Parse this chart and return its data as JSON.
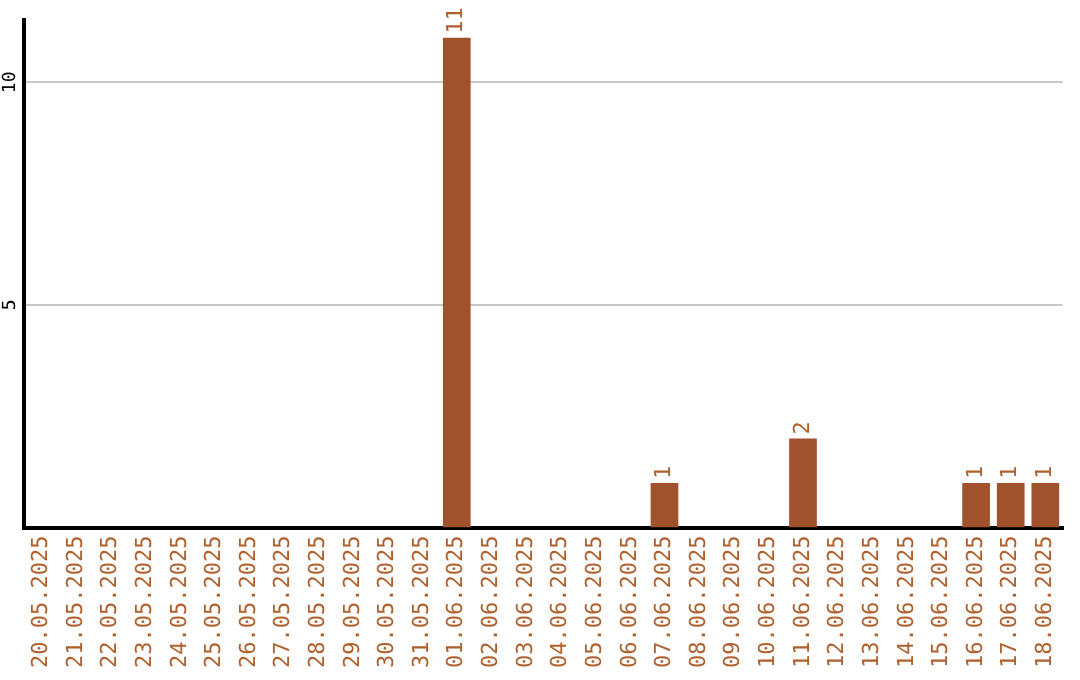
{
  "chart_data": {
    "type": "bar",
    "categories": [
      "20.05.2025",
      "21.05.2025",
      "22.05.2025",
      "23.05.2025",
      "24.05.2025",
      "25.05.2025",
      "26.05.2025",
      "27.05.2025",
      "28.05.2025",
      "29.05.2025",
      "30.05.2025",
      "31.05.2025",
      "01.06.2025",
      "02.06.2025",
      "03.06.2025",
      "04.06.2025",
      "05.06.2025",
      "06.06.2025",
      "07.06.2025",
      "08.06.2025",
      "09.06.2025",
      "10.06.2025",
      "11.06.2025",
      "12.06.2025",
      "13.06.2025",
      "14.06.2025",
      "15.06.2025",
      "16.06.2025",
      "17.06.2025",
      "18.06.2025"
    ],
    "values": [
      0,
      0,
      0,
      0,
      0,
      0,
      0,
      0,
      0,
      0,
      0,
      0,
      11,
      0,
      0,
      0,
      0,
      0,
      1,
      0,
      0,
      0,
      2,
      0,
      0,
      0,
      0,
      1,
      1,
      1
    ],
    "value_labels": [
      null,
      null,
      null,
      null,
      null,
      null,
      null,
      null,
      null,
      null,
      null,
      null,
      "11",
      null,
      null,
      null,
      null,
      null,
      "1",
      null,
      null,
      null,
      "2",
      null,
      null,
      null,
      null,
      "1",
      "1",
      "1"
    ],
    "color": "#a0522d",
    "ylim": [
      0,
      11.4
    ],
    "yticks": [
      5,
      10
    ],
    "grid": "y",
    "legend": false
  }
}
